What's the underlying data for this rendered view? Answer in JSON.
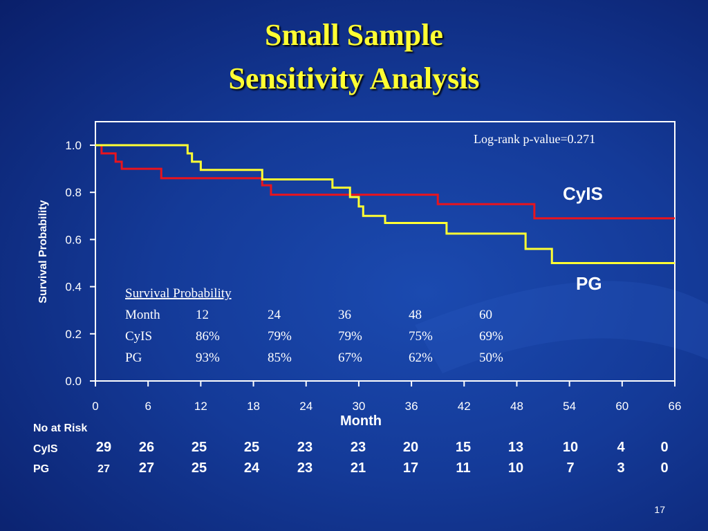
{
  "slide": {
    "title_line1": "Small Sample",
    "title_line2": "Sensitivity Analysis",
    "page_number": "17",
    "background_color": "#143a98",
    "title_color": "#ffff33"
  },
  "chart_data": {
    "type": "line",
    "subtype": "kaplan-meier step",
    "xlabel": "Month",
    "ylabel": "Survival Probability",
    "xlim": [
      0,
      66
    ],
    "ylim": [
      0,
      1.0
    ],
    "x_ticks": [
      0,
      6,
      12,
      18,
      24,
      30,
      36,
      42,
      48,
      54,
      60,
      66
    ],
    "y_ticks": [
      "0.0",
      "0.2",
      "0.4",
      "0.6",
      "0.8",
      "1.0"
    ],
    "annotation": "Log-rank p-value=0.271",
    "series": [
      {
        "name": "CyIS",
        "color": "#e8141e",
        "steps": [
          [
            0,
            1.0
          ],
          [
            0.7,
            0.965
          ],
          [
            2.3,
            0.93
          ],
          [
            3.0,
            0.9
          ],
          [
            7.5,
            0.86
          ],
          [
            19.0,
            0.83
          ],
          [
            20.0,
            0.79
          ],
          [
            39.0,
            0.75
          ],
          [
            50.0,
            0.69
          ],
          [
            66,
            0.69
          ]
        ]
      },
      {
        "name": "PG",
        "color": "#ffff33",
        "steps": [
          [
            0,
            1.0
          ],
          [
            10.5,
            0.965
          ],
          [
            11.0,
            0.93
          ],
          [
            12.0,
            0.895
          ],
          [
            19.0,
            0.855
          ],
          [
            27.0,
            0.82
          ],
          [
            29.0,
            0.78
          ],
          [
            30.0,
            0.74
          ],
          [
            30.5,
            0.7
          ],
          [
            33.0,
            0.67
          ],
          [
            40.0,
            0.625
          ],
          [
            49.0,
            0.56
          ],
          [
            52.0,
            0.5
          ],
          [
            66,
            0.5
          ]
        ]
      }
    ],
    "survival_table": {
      "title": "Survival Probability",
      "header": [
        "Month",
        "12",
        "24",
        "36",
        "48",
        "60"
      ],
      "rows": [
        [
          "CyIS",
          "86%",
          "79%",
          "79%",
          "75%",
          "69%"
        ],
        [
          "PG",
          "93%",
          "85%",
          "67%",
          "62%",
          "50%"
        ]
      ]
    },
    "no_at_risk": {
      "title": "No at Risk",
      "rows": [
        {
          "label": "CyIS",
          "values": [
            "29",
            "26",
            "25",
            "25",
            "23",
            "23",
            "20",
            "15",
            "13",
            "10",
            "4",
            "0"
          ]
        },
        {
          "label": "PG",
          "first": "27",
          "values": [
            "27",
            "25",
            "24",
            "23",
            "21",
            "17",
            "11",
            "10",
            "7",
            "3",
            "0"
          ]
        }
      ]
    }
  }
}
